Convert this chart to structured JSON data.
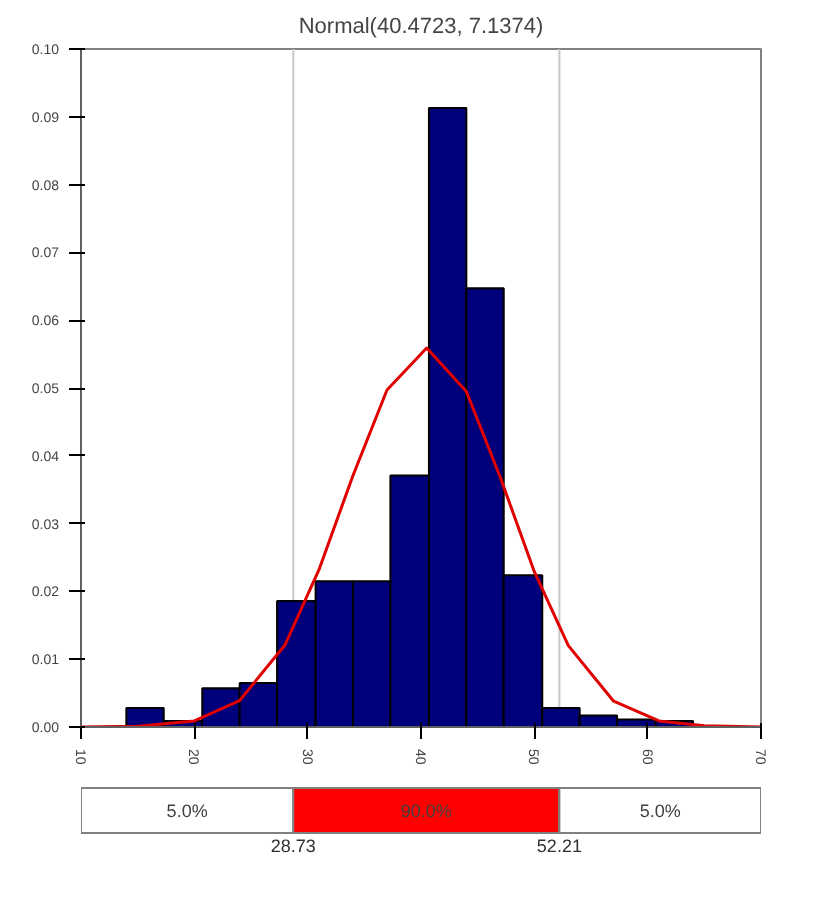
{
  "chart_data": {
    "type": "histogram",
    "title": "Normal(40.4723, 7.1374)",
    "bins": [
      14.0,
      17.3,
      20.7,
      24.0,
      27.3,
      30.7,
      34.0,
      37.3,
      40.7,
      44.0,
      47.3,
      50.7,
      54.0,
      57.3,
      60.7,
      64.0
    ],
    "values": [
      0.0028,
      0.0009,
      0.0057,
      0.0065,
      0.0186,
      0.0215,
      0.0215,
      0.0371,
      0.0913,
      0.0647,
      0.0224,
      0.0028,
      0.0017,
      0.0011,
      0.0009
    ],
    "color": "#00007a",
    "series": [
      {
        "type": "line",
        "color": "#e00000",
        "x": [
          10,
          15,
          20,
          24,
          28,
          31,
          34,
          37,
          40.5,
          44,
          47,
          50,
          53,
          57,
          61,
          65,
          70
        ],
        "values": [
          0.0,
          0.0001,
          0.0009,
          0.0039,
          0.0121,
          0.0232,
          0.0371,
          0.0497,
          0.0559,
          0.0495,
          0.0368,
          0.0229,
          0.012,
          0.0038,
          0.0009,
          0.0002,
          0.0
        ]
      }
    ],
    "xlim": [
      10,
      70
    ],
    "xticks": [
      10,
      20,
      30,
      40,
      50,
      60,
      70
    ],
    "ylim": [
      0,
      0.1
    ],
    "yticks": [
      {
        "value": 0,
        "label": "0.00"
      },
      {
        "value": 0.01,
        "label": "0.01"
      },
      {
        "value": 0.02,
        "label": "0.02"
      },
      {
        "value": 0.03,
        "label": "0.03"
      },
      {
        "value": 0.04,
        "label": "0.04"
      },
      {
        "value": 0.05,
        "label": "0.05"
      },
      {
        "value": 0.06,
        "label": "0.06"
      },
      {
        "value": 0.07,
        "label": "0.07"
      },
      {
        "value": 0.08,
        "label": "0.08"
      },
      {
        "value": 0.09,
        "label": "0.09"
      },
      {
        "value": 0.1,
        "label": "0.10"
      }
    ],
    "ref_lines": [
      {
        "axis": "x",
        "value": 28.73,
        "color": "#c8c8c8"
      },
      {
        "axis": "x",
        "value": 52.21,
        "color": "#c8c8c8"
      }
    ],
    "annotations": [
      "5.0%",
      "90.0%",
      "5.0%",
      "28.73",
      "52.21"
    ],
    "grid": false
  }
}
